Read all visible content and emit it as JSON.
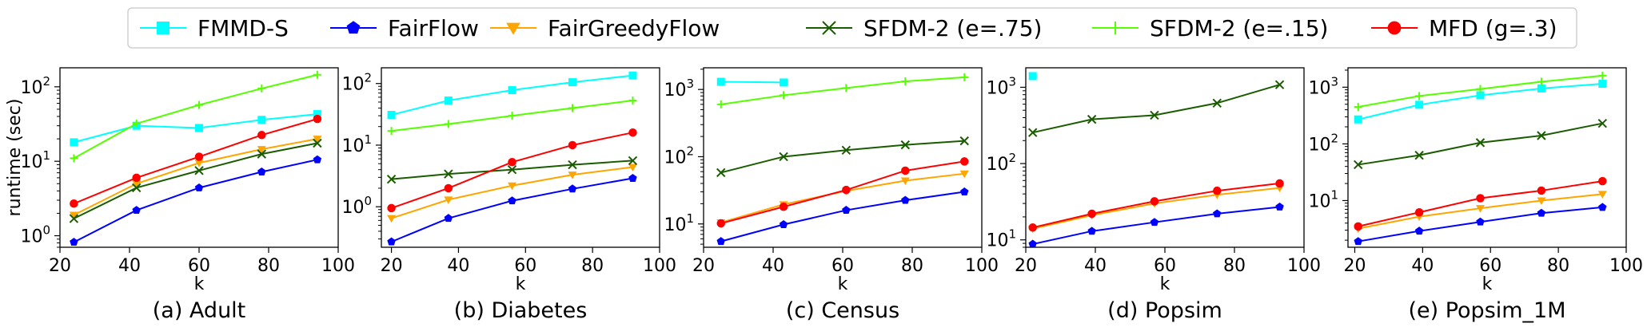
{
  "legend": [
    {
      "name": "FMMD-S",
      "color": "#00ffff",
      "marker": "square"
    },
    {
      "name": "FairFlow",
      "color": "#0000ff",
      "marker": "pentagon"
    },
    {
      "name": "FairGreedyFlow",
      "color": "#ffa500",
      "marker": "triangle-down"
    },
    {
      "name": "SFDM-2 (e=.75)",
      "color": "#1a5c00",
      "marker": "x"
    },
    {
      "name": "SFDM-2 (e=.15)",
      "color": "#55ff00",
      "marker": "plus"
    },
    {
      "name": "MFD (g=.3)",
      "color": "#ff0000",
      "marker": "circle"
    }
  ],
  "chart_data": [
    {
      "type": "line",
      "caption": "(a) Adult",
      "xlabel": "k",
      "ylabel": "runtime (sec)",
      "xlim": [
        20,
        100
      ],
      "ylim": [
        0.7,
        180
      ],
      "yscale": "log",
      "xticks": [
        20,
        40,
        60,
        80,
        100
      ],
      "yticks": [
        {
          "v": 1,
          "base": "10",
          "exp": "0"
        },
        {
          "v": 10,
          "base": "10",
          "exp": "1"
        },
        {
          "v": 100,
          "base": "10",
          "exp": "2"
        }
      ],
      "series": [
        {
          "name": "FMMD-S",
          "x": [
            24,
            42,
            60,
            78,
            94
          ],
          "values": [
            18,
            30,
            28,
            36,
            43
          ]
        },
        {
          "name": "FairFlow",
          "x": [
            24,
            42,
            60,
            78,
            94
          ],
          "values": [
            0.82,
            2.2,
            4.4,
            7.2,
            10.5
          ]
        },
        {
          "name": "FairGreedyFlow",
          "x": [
            24,
            42,
            60,
            78,
            94
          ],
          "values": [
            1.9,
            5.0,
            9.5,
            14.5,
            20
          ]
        },
        {
          "name": "SFDM-2 (e=.75)",
          "x": [
            24,
            42,
            60,
            78,
            94
          ],
          "values": [
            1.7,
            4.4,
            7.5,
            12.5,
            17.5
          ]
        },
        {
          "name": "SFDM-2 (e=.15)",
          "x": [
            24,
            42,
            60,
            78,
            94
          ],
          "values": [
            11,
            32,
            57,
            95,
            145
          ]
        },
        {
          "name": "MFD (g=.3)",
          "x": [
            24,
            42,
            60,
            78,
            94
          ],
          "values": [
            2.7,
            6.0,
            11.5,
            22.5,
            37
          ]
        }
      ]
    },
    {
      "type": "line",
      "caption": "(b) Diabetes",
      "xlabel": "k",
      "ylabel": "",
      "xlim": [
        17,
        100
      ],
      "ylim": [
        0.22,
        180
      ],
      "yscale": "log",
      "xticks": [
        20,
        40,
        60,
        80,
        100
      ],
      "yticks": [
        {
          "v": 1,
          "base": "10",
          "exp": "0"
        },
        {
          "v": 10,
          "base": "10",
          "exp": "1"
        },
        {
          "v": 100,
          "base": "10",
          "exp": "2"
        }
      ],
      "series": [
        {
          "name": "FMMD-S",
          "x": [
            20,
            37,
            56,
            74,
            92
          ],
          "values": [
            31,
            53,
            78,
            105,
            135
          ]
        },
        {
          "name": "FairFlow",
          "x": [
            20,
            37,
            56,
            74,
            92
          ],
          "values": [
            0.27,
            0.65,
            1.25,
            1.95,
            2.9
          ]
        },
        {
          "name": "FairGreedyFlow",
          "x": [
            20,
            37,
            56,
            74,
            92
          ],
          "values": [
            0.65,
            1.3,
            2.2,
            3.3,
            4.4
          ]
        },
        {
          "name": "SFDM-2 (e=.75)",
          "x": [
            20,
            37,
            56,
            74,
            92
          ],
          "values": [
            2.8,
            3.4,
            4.0,
            4.8,
            5.6
          ]
        },
        {
          "name": "SFDM-2 (e=.15)",
          "x": [
            20,
            37,
            56,
            74,
            92
          ],
          "values": [
            17,
            22,
            30,
            40,
            53
          ]
        },
        {
          "name": "MFD (g=.3)",
          "x": [
            20,
            37,
            56,
            74,
            92
          ],
          "values": [
            0.95,
            2.0,
            5.3,
            10,
            16
          ]
        }
      ]
    },
    {
      "type": "line",
      "caption": "(c) Census",
      "xlabel": "k",
      "ylabel": "",
      "xlim": [
        20,
        100
      ],
      "ylim": [
        4.5,
        2100
      ],
      "yscale": "log",
      "xticks": [
        20,
        40,
        60,
        80,
        100
      ],
      "yticks": [
        {
          "v": 10,
          "base": "10",
          "exp": "1"
        },
        {
          "v": 100,
          "base": "10",
          "exp": "2"
        },
        {
          "v": 1000,
          "base": "10",
          "exp": "3"
        }
      ],
      "series": [
        {
          "name": "FMMD-S",
          "x": [
            25,
            43
          ],
          "values": [
            1300,
            1270
          ]
        },
        {
          "name": "FairFlow",
          "x": [
            25,
            43,
            61,
            78,
            95
          ],
          "values": [
            5.5,
            9.8,
            16,
            22.5,
            30
          ]
        },
        {
          "name": "FairGreedyFlow",
          "x": [
            25,
            43,
            61,
            78,
            95
          ],
          "values": [
            10.5,
            19.5,
            31,
            44,
            56
          ]
        },
        {
          "name": "SFDM-2 (e=.75)",
          "x": [
            25,
            43,
            61,
            78,
            95
          ],
          "values": [
            58,
            100,
            125,
            150,
            172
          ]
        },
        {
          "name": "SFDM-2 (e=.15)",
          "x": [
            25,
            43,
            61,
            78,
            95
          ],
          "values": [
            600,
            820,
            1050,
            1320,
            1520
          ]
        },
        {
          "name": "MFD (g=.3)",
          "x": [
            25,
            43,
            61,
            78,
            95
          ],
          "values": [
            10.2,
            18,
            32,
            62,
            85
          ]
        }
      ]
    },
    {
      "type": "line",
      "caption": "(d) Popsim",
      "xlabel": "k",
      "ylabel": "",
      "xlim": [
        20,
        100
      ],
      "ylim": [
        8,
        1800
      ],
      "yscale": "log",
      "xticks": [
        20,
        40,
        60,
        80,
        100
      ],
      "yticks": [
        {
          "v": 10,
          "base": "10",
          "exp": "1"
        },
        {
          "v": 100,
          "base": "10",
          "exp": "2"
        },
        {
          "v": 1000,
          "base": "10",
          "exp": "3"
        }
      ],
      "series": [
        {
          "name": "FMMD-S",
          "x": [
            22
          ],
          "values": [
            1400
          ]
        },
        {
          "name": "FairFlow",
          "x": [
            22,
            39,
            57,
            75,
            93
          ],
          "values": [
            8.8,
            13,
            17,
            22,
            27
          ]
        },
        {
          "name": "FairGreedyFlow",
          "x": [
            22,
            39,
            57,
            75,
            93
          ],
          "values": [
            14,
            21,
            30,
            39,
            48
          ]
        },
        {
          "name": "SFDM-2 (e=.75)",
          "x": [
            22,
            39,
            57,
            75,
            93
          ],
          "values": [
            255,
            380,
            430,
            620,
            1080
          ]
        },
        {
          "name": "MFD (g=.3)",
          "x": [
            22,
            39,
            57,
            75,
            93
          ],
          "values": [
            14.5,
            22,
            32,
            44,
            55
          ]
        }
      ]
    },
    {
      "type": "line",
      "caption": "(e) Popsim_1M",
      "xlabel": "k",
      "ylabel": "",
      "xlim": [
        18,
        100
      ],
      "ylim": [
        1.5,
        2200
      ],
      "yscale": "log",
      "xticks": [
        20,
        40,
        60,
        80,
        100
      ],
      "yticks": [
        {
          "v": 10,
          "base": "10",
          "exp": "1"
        },
        {
          "v": 100,
          "base": "10",
          "exp": "2"
        },
        {
          "v": 1000,
          "base": "10",
          "exp": "3"
        }
      ],
      "series": [
        {
          "name": "FMMD-S",
          "x": [
            21,
            39,
            57,
            75,
            93
          ],
          "values": [
            270,
            490,
            720,
            950,
            1150
          ]
        },
        {
          "name": "FairFlow",
          "x": [
            21,
            39,
            57,
            75,
            93
          ],
          "values": [
            1.9,
            2.9,
            4.2,
            6.0,
            7.6
          ]
        },
        {
          "name": "FairGreedyFlow",
          "x": [
            21,
            39,
            57,
            75,
            93
          ],
          "values": [
            3.2,
            5.2,
            7.3,
            10,
            13
          ]
        },
        {
          "name": "SFDM-2 (e=.75)",
          "x": [
            21,
            39,
            57,
            75,
            93
          ],
          "values": [
            43,
            63,
            105,
            140,
            230
          ]
        },
        {
          "name": "SFDM-2 (e=.15)",
          "x": [
            21,
            39,
            57,
            75,
            93
          ],
          "values": [
            450,
            700,
            930,
            1250,
            1600
          ]
        },
        {
          "name": "MFD (g=.3)",
          "x": [
            21,
            39,
            57,
            75,
            93
          ],
          "values": [
            3.5,
            6.2,
            11,
            15,
            22
          ]
        }
      ]
    }
  ]
}
